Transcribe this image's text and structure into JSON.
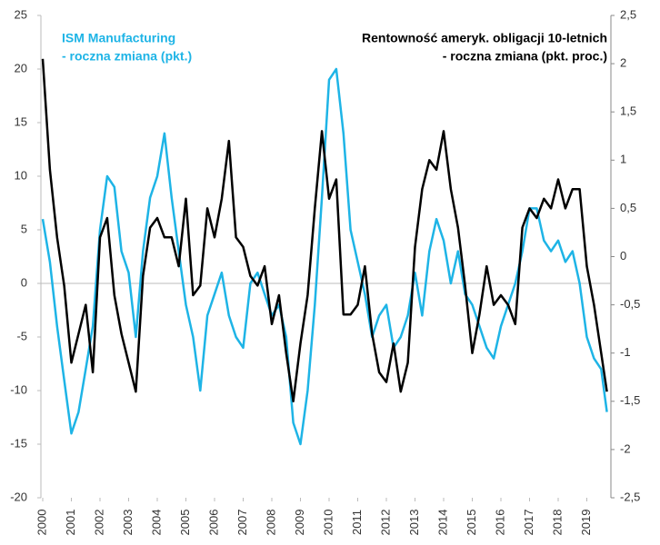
{
  "chart_data": {
    "type": "line",
    "x": [
      2000,
      2000.25,
      2000.5,
      2000.75,
      2001,
      2001.25,
      2001.5,
      2001.75,
      2002,
      2002.25,
      2002.5,
      2002.75,
      2003,
      2003.25,
      2003.5,
      2003.75,
      2004,
      2004.25,
      2004.5,
      2004.75,
      2005,
      2005.25,
      2005.5,
      2005.75,
      2006,
      2006.25,
      2006.5,
      2006.75,
      2007,
      2007.25,
      2007.5,
      2007.75,
      2008,
      2008.25,
      2008.5,
      2008.75,
      2009,
      2009.25,
      2009.5,
      2009.75,
      2010,
      2010.25,
      2010.5,
      2010.75,
      2011,
      2011.25,
      2011.5,
      2011.75,
      2012,
      2012.25,
      2012.5,
      2012.75,
      2013,
      2013.25,
      2013.5,
      2013.75,
      2014,
      2014.25,
      2014.5,
      2014.75,
      2015,
      2015.25,
      2015.5,
      2015.75,
      2016,
      2016.25,
      2016.5,
      2016.75,
      2017,
      2017.25,
      2017.5,
      2017.75,
      2018,
      2018.25,
      2018.5,
      2018.75,
      2019,
      2019.25,
      2019.5,
      2019.7
    ],
    "series": [
      {
        "name": "ISM Manufacturing",
        "note": "- roczna zmiana (pkt.)",
        "color": "#1eb4e6",
        "axis": "y",
        "values": [
          6,
          2,
          -4,
          -9,
          -14,
          -12,
          -8,
          -4,
          5,
          10,
          9,
          3,
          1,
          -5,
          3,
          8,
          10,
          14,
          8,
          3,
          -2,
          -5,
          -10,
          -3,
          -1,
          1,
          -3,
          -5,
          -6,
          0,
          1,
          -1,
          -3,
          -2,
          -5,
          -13,
          -15,
          -10,
          -2,
          8,
          19,
          20,
          14,
          5,
          2,
          -1,
          -5,
          -3,
          -2,
          -6,
          -5,
          -3,
          1,
          -3,
          3,
          6,
          4,
          0,
          3,
          -1,
          -2,
          -4,
          -6,
          -7,
          -4,
          -2,
          0,
          3,
          7,
          7,
          4,
          3,
          4,
          2,
          3,
          0,
          -5,
          -7,
          -8,
          -12
        ]
      },
      {
        "name": "Rentowność ameryk. obligacji 10-letnich",
        "note": "- roczna zmiana (pkt. proc.)",
        "color": "#000000",
        "axis": "y2",
        "values": [
          2.05,
          0.9,
          0.2,
          -0.3,
          -1.1,
          -0.8,
          -0.5,
          -1.2,
          0.2,
          0.4,
          -0.4,
          -0.8,
          -1.1,
          -1.4,
          -0.2,
          0.3,
          0.4,
          0.2,
          0.2,
          -0.1,
          0.6,
          -0.4,
          -0.3,
          0.5,
          0.2,
          0.6,
          1.2,
          0.2,
          0.1,
          -0.2,
          -0.3,
          -0.1,
          -0.7,
          -0.4,
          -1.0,
          -1.5,
          -0.9,
          -0.4,
          0.5,
          1.3,
          0.6,
          0.8,
          -0.6,
          -0.6,
          -0.5,
          -0.1,
          -0.8,
          -1.2,
          -1.3,
          -0.9,
          -1.4,
          -1.1,
          0.1,
          0.7,
          1.0,
          0.9,
          1.3,
          0.7,
          0.3,
          -0.3,
          -1.0,
          -0.6,
          -0.1,
          -0.5,
          -0.4,
          -0.5,
          -0.7,
          0.3,
          0.5,
          0.4,
          0.6,
          0.5,
          0.8,
          0.5,
          0.7,
          0.7,
          -0.1,
          -0.5,
          -1.0,
          -1.4
        ]
      }
    ],
    "xlim": [
      2000,
      2020
    ],
    "xticks": [
      2000,
      2001,
      2002,
      2003,
      2004,
      2005,
      2006,
      2007,
      2008,
      2009,
      2010,
      2011,
      2012,
      2013,
      2014,
      2015,
      2016,
      2017,
      2018,
      2019
    ],
    "ylim": [
      -20,
      25
    ],
    "yticks": [
      -20,
      -15,
      -10,
      -5,
      0,
      5,
      10,
      15,
      20,
      25
    ],
    "y2lim": [
      -2.5,
      2.5
    ],
    "y2ticks": [
      {
        "value": -2.5,
        "label": "-2,5"
      },
      -2,
      {
        "value": -1.5,
        "label": "-1,5"
      },
      -1,
      {
        "value": -0.5,
        "label": "-0,5"
      },
      0,
      {
        "value": 0.5,
        "label": "0,5"
      },
      1,
      {
        "value": 1.5,
        "label": "1,5"
      },
      2,
      {
        "value": 2.5,
        "label": "2,5"
      }
    ]
  }
}
